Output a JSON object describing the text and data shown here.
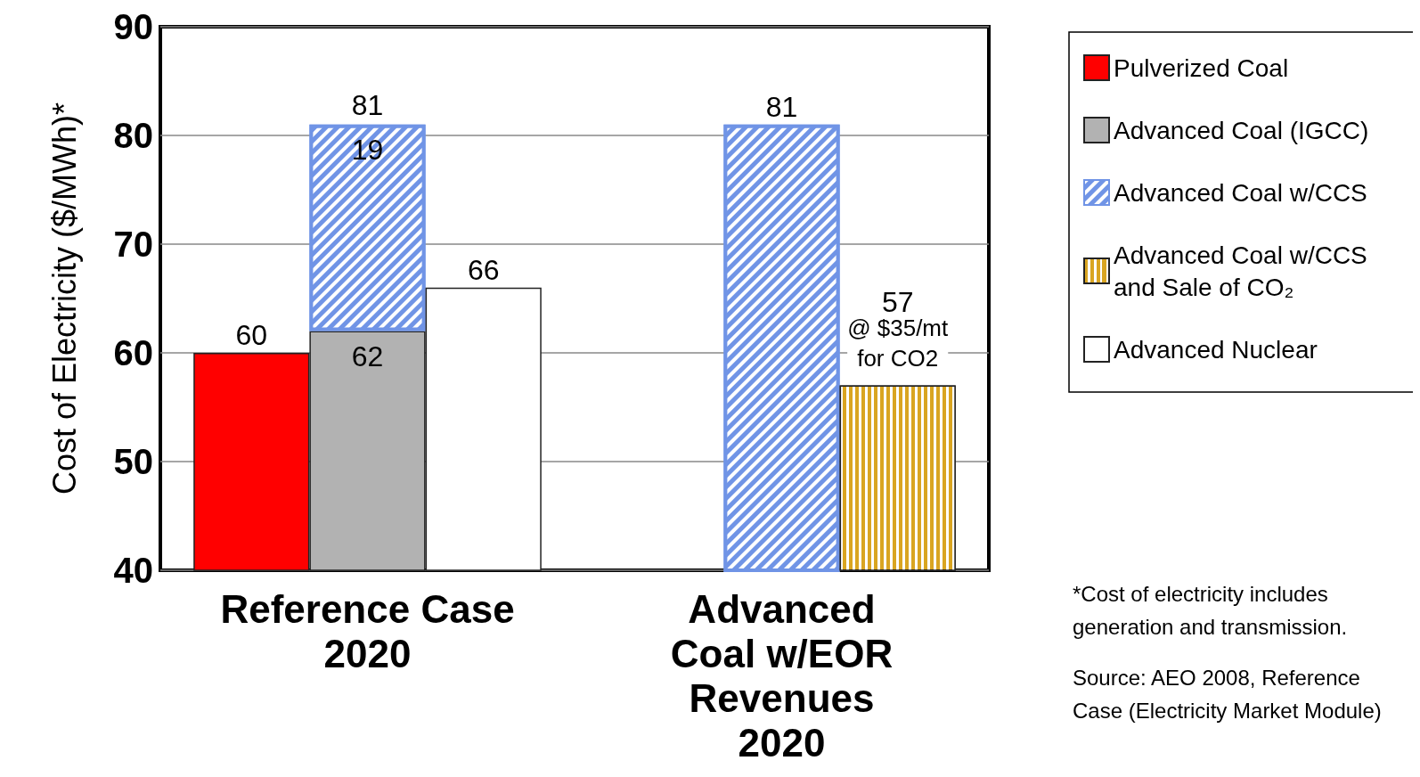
{
  "chart_data": {
    "type": "bar",
    "ylabel": "Cost of Electricity ($/MWh)*",
    "categories": [
      "Reference Case\n2020",
      "Advanced\nCoal w/EOR\nRevenues\n2020"
    ],
    "series": [
      {
        "name": "Pulverized Coal",
        "color": "#ff0000",
        "values": [
          60,
          null
        ]
      },
      {
        "name": "Advanced Coal (IGCC)",
        "color": "#b2b2b2",
        "values": [
          62,
          null
        ]
      },
      {
        "name": "Advanced Coal w/CCS",
        "color": "#7094e6",
        "values": [
          19,
          81
        ],
        "base": [
          62,
          0
        ]
      },
      {
        "name": "Advanced Coal w/CCS and Sale of CO₂",
        "color": "#d9a521",
        "values": [
          null,
          57
        ]
      },
      {
        "name": "Advanced Nuclear",
        "color": "#ffffff",
        "values": [
          66,
          null
        ]
      }
    ],
    "data_labels": true,
    "ylim": [
      40,
      90
    ],
    "yticks": [
      40,
      50,
      60,
      70,
      80,
      90
    ],
    "grid": "y",
    "legend": "top right",
    "annotations": [
      {
        "text": "81",
        "x": "Reference Case\n2020",
        "y": 81
      },
      "@ $35/mt\nfor CO2",
      "*Cost of electricity includes\ngeneration and transmission.",
      "Source: AEO 2008, Reference\nCase (Electricity Market Module)"
    ]
  }
}
